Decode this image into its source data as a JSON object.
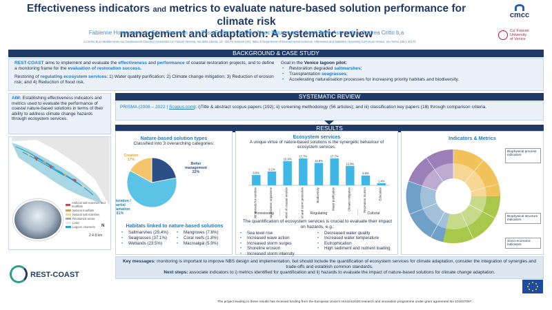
{
  "header": {
    "title_line1a": "Effectiveness indicators",
    "title_and": "and",
    "title_line1b": "metrics to evaluate nature-based solution performance for climate risk",
    "title_line2": "management and adaptation: A systematic review",
    "authors": "Fabienne Horneman a,b; Silvia Torresan a, b; Elisa Furlan a, b; Diep Ngoc Nguyen a,b ; Asrat Tekle Asresu b,a ;Andrea Critto b,a",
    "affiliations": "a Centro Euro-Mediterraneo sui Cambiamenti Climatici | Università Ca' Foscari Venezia, Via della Libertà, 12 - 30175 Venezia (VE), Italia; b Department of Environmental Sciences, Informatics and Statistics, University Ca'Foscari Venice, Via Torino 155,1 30172",
    "logo_cmcc": "cmcc",
    "logo_cf_line1": "Ca' Foscari",
    "logo_cf_line2": "University",
    "logo_cf_line3": "of Venice"
  },
  "background": {
    "heading": "BACKGROUND & CASE STUDY",
    "p1_rc": "REST-COAST",
    "p1_a": " aims to implement and evaluate the ",
    "p1_eff": "effectiveness",
    "p1_b": " and ",
    "p1_perf": "performance",
    "p1_c": " of coastal restoration projects, and to define a monitoring frame for the ",
    "p1_eval": "evaluation of restoration success.",
    "p2_a": "Restoring of ",
    "p2_reg": "regulating ecosystem services",
    "p2_b": ": 1) Water quality purification; 2) Climate change mitigation; 3) Reduction of erosion risk; and 4) Reduction of flood risk.",
    "goal_a": "Goal in the ",
    "goal_b": "Venice lagoon pilot:",
    "goal_items": [
      {
        "pre": "Restoration degraded ",
        "hl": "saltmarshes",
        "post": ";"
      },
      {
        "pre": "Transplantation ",
        "hl": "seagrasses",
        "post": ";"
      },
      {
        "pre": "Accelerating naturalisation processes for increasing priority habitats and biodiversity.",
        "hl": "",
        "post": ""
      }
    ]
  },
  "aim": {
    "label": "AIM:",
    "text": " Establishing effectiveness indicators and metrics used to evaluate the performance of coastal nature-based solutions in terms of their ability to address climate change hazards through ecosystem services."
  },
  "systematic": {
    "heading": "SYSTEMATIC REVIEW",
    "prisma": "PRISMA (2008 – 2022 | ",
    "link": "Scopus.com",
    "rest": "): i)Title & abstract scopus papers (192); ii) screening methodology (56 articles); and iii) classification key papers (18) through comparison criteria."
  },
  "results_heading": "RESULTS",
  "nbs_types": {
    "title": "Nature-based solution types",
    "subtitle": "Classified into 3 overarching categories:",
    "habitats_title": "Habitats linked to nature-based solutions",
    "habitats_col1": [
      "Saltmarshes (29.4%)",
      "Seagrasses (37.1%)",
      "Wetlands (23.5%)"
    ],
    "habitats_col2": [
      "Mangroves (7.6%)",
      "Coral reefs (1.8%)",
      "Macroalgal (5.9%)"
    ]
  },
  "ecosystem": {
    "title": "Ecosystem services",
    "subtitle": "A unique virtue of nature-based solutions is the synergetic behaviour of ecosystem services.",
    "quant_text": "The quantification of ecosystem services is crucial to evaluate their impact on hazards, e.g.:",
    "hazards_col1": [
      "Sea level rise",
      "Increased wave action",
      "Increased storm surges",
      "Shoreline erosion",
      "Increased storm intensity"
    ],
    "hazards_col2": [
      "Decreased water quality",
      "Increased water temperature",
      "Eutrophication",
      "High sediment and nutrient loading"
    ],
    "groups": [
      "Provisioning",
      "Regulating",
      "Cultural"
    ]
  },
  "indicators": {
    "title": "Indicators & Metrics",
    "callouts": [
      "Biophysical process indicators",
      "Biophysical structure indicators",
      "Socio-economic indicators"
    ]
  },
  "map_legend": [
    "Artificial salt marshes and mudflats",
    "Natural mudflats",
    "Natural salt marshes",
    "Reclaimed areas",
    "Land",
    "Lagoon channels"
  ],
  "map_scale": "2   4   8 km",
  "map_north": "N",
  "key_messages": {
    "label": "Key messages:",
    "text": " monitoring is important to improve NBS design and implementation, but should include the quantification of ecosystem services for climate adaptation, consider the integration of synergies and trade-offs and establish common standards.",
    "next_label": "Next steps:",
    "next_text": " associate indicators to i) metrics identified for quantification and ii) hazards to evaluate the impact of nature-based solutions for climate change adaptation."
  },
  "footer": {
    "rest_coast_logo": "REST-COAST",
    "funding": "The project leading to these results has received funding from the European Union's Horizon2020 research and innovation programme under grant agreement No 101037097."
  },
  "chart_data": [
    {
      "type": "pie",
      "title": "Nature-based solution types",
      "categories": [
        "Better management",
        "Restoration / partial reclamation",
        "Creation"
      ],
      "values": [
        22,
        61,
        17
      ],
      "labels": [
        "Better management 22%",
        "Restoration / partial reclamation 61%",
        "Creation 17%"
      ],
      "colors": [
        "#2b4f86",
        "#5bc3e6",
        "#f4c56b"
      ]
    },
    {
      "type": "bar",
      "title": "Ecosystem services",
      "categories": [
        "Wild animals for nutrition",
        "Sequestration organisms",
        "Control of coastal erosion",
        "Flood and storm protection",
        "Biodiversity",
        "Water purification",
        "Climate mitigation",
        "Recreation tourism",
        "Education"
      ],
      "values": [
        6.8,
        9.1,
        15.9,
        17.7,
        14.8,
        17.7,
        12.8,
        6.5,
        1.4
      ],
      "value_labels": [
        "6.8%",
        "9.1%",
        "15.9%",
        "17.7%",
        "14.8%",
        "17.7%",
        "12.8%",
        "6.5%",
        "1.4%"
      ],
      "groups": [
        "Provisioning",
        "Provisioning",
        "Regulating",
        "Regulating",
        "Regulating",
        "Regulating",
        "Regulating",
        "Cultural",
        "Cultural"
      ],
      "ylim": [
        0,
        20
      ],
      "color": "#3fb8e8"
    }
  ]
}
